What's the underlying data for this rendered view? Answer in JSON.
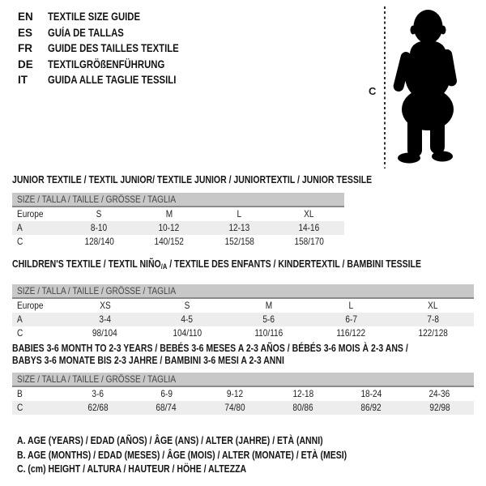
{
  "colors": {
    "header_bar_bg": "#c8c8c8",
    "header_bar_border": "#8a8a8a",
    "row_stripe": "#ededed",
    "text": "#1b1b1b",
    "silhouette": "#000000"
  },
  "languages": [
    {
      "code": "EN",
      "title": "TEXTILE SIZE GUIDE"
    },
    {
      "code": "ES",
      "title": "GUÍA DE TALLAS"
    },
    {
      "code": "FR",
      "title": "GUIDE DES TAILLES TEXTILE"
    },
    {
      "code": "DE",
      "title": "TEXTILGRÖßENFÜHRUNG"
    },
    {
      "code": "IT",
      "title": "GUIDA ALLE TAGLIE TESSILI"
    }
  ],
  "figure": {
    "label": "C"
  },
  "tables": [
    {
      "title": "JUNIOR TEXTILE / TEXTIL JUNIOR/ TEXTILE JUNIOR / JUNIORTEXTIL / JUNIOR TESSILE",
      "header": "SIZE / TALLA / TAILLE / GRÖSSE / TAGLIA",
      "rows": [
        [
          "Europe",
          "S",
          "M",
          "L",
          "XL"
        ],
        [
          "A",
          "8-10",
          "10-12",
          "12-13",
          "14-16"
        ],
        [
          "C",
          "128/140",
          "140/152",
          "152/158",
          "158/170"
        ]
      ]
    },
    {
      "title_prefix": "CHILDREN'S TEXTILE / TEXTIL NIÑO",
      "title_sub": "/A",
      "title_suffix": " / TEXTILE DES ENFANTS / KINDERTEXTIL / BAMBINI TESSILE",
      "header": "SIZE / TALLA / TAILLE / GRÖSSE / TAGLIA",
      "rows": [
        [
          "Europe",
          "XS",
          "S",
          "M",
          "L",
          "XL"
        ],
        [
          "A",
          "3-4",
          "4-5",
          "5-6",
          "6-7",
          "7-8"
        ],
        [
          "C",
          "98/104",
          "104/110",
          "110/116",
          "116/122",
          "122/128"
        ]
      ]
    },
    {
      "title_line1": "BABIES 3-6 MONTH TO 2-3 YEARS / BEBÉS 3-6 MESES A 2-3 AÑOS / BÉBÉS 3-6 MOIS À 2-3 ANS /",
      "title_line2": "BABYS 3-6 MONATE BIS 2-3 JAHRE / BAMBINI 3-6 MESI A 2-3 ANNI",
      "header": "SIZE / TALLA / TAILLE / GRÖSSE / TAGLIA",
      "rows": [
        [
          "B",
          "3-6",
          "6-9",
          "9-12",
          "12-18",
          "18-24",
          "24-36"
        ],
        [
          "C",
          "62/68",
          "68/74",
          "74/80",
          "80/86",
          "86/92",
          "92/98"
        ]
      ]
    }
  ],
  "legend": [
    "A. AGE (YEARS) / EDAD (AÑOS) / ÂGE (ANS) / ALTER (JAHRE) / ETÀ (ANNI)",
    "B. AGE (MONTHS) / EDAD (MESES) / ÂGE (MOIS) / ALTER (MONATE) / ETÀ (MESI)",
    "C. (cm) HEIGHT / ALTURA / HAUTEUR / HÖHE / ALTEZZA"
  ]
}
